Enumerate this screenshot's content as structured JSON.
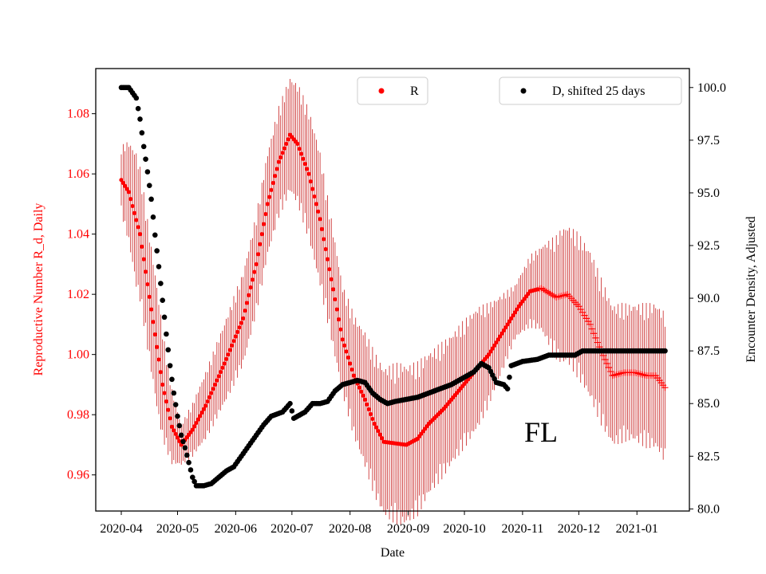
{
  "chart_data": {
    "type": "scatter",
    "title": "",
    "xlabel": "Date",
    "ylabel_left": "Reproductive Number R_d, Daily",
    "ylabel_right": "Encounter Density, Adjusted",
    "annotation": "FL",
    "x_ticks": [
      "2020-04",
      "2020-05",
      "2020-06",
      "2020-07",
      "2020-08",
      "2020-09",
      "2020-10",
      "2020-11",
      "2020-12",
      "2021-01"
    ],
    "ylim_left": [
      0.948,
      1.095
    ],
    "yticks_left": [
      "0.96",
      "0.98",
      "1.00",
      "1.02",
      "1.04",
      "1.06",
      "1.08"
    ],
    "ylim_right": [
      79.9,
      100.9
    ],
    "yticks_right": [
      "80.0",
      "82.5",
      "85.0",
      "87.5",
      "90.0",
      "92.5",
      "95.0",
      "97.5",
      "100.0"
    ],
    "legend": [
      {
        "name": "R",
        "color": "#ff0000",
        "marker": "dot",
        "placement": "top-center"
      },
      {
        "name": "D, shifted 25 days",
        "color": "#000000",
        "marker": "dot",
        "placement": "top-right"
      }
    ],
    "series": [
      {
        "name": "R",
        "axis": "left",
        "color": "#ff0000",
        "error_color": "#c00000",
        "note": "days since 2020-04-01; dot markers to day 223, plus markers afterwards",
        "marker_switch_day": 223,
        "knots": [
          [
            0,
            1.058
          ],
          [
            4,
            1.054
          ],
          [
            10,
            1.04
          ],
          [
            16,
            1.015
          ],
          [
            22,
            0.99
          ],
          [
            27,
            0.976
          ],
          [
            32,
            0.97
          ],
          [
            38,
            0.975
          ],
          [
            45,
            0.983
          ],
          [
            55,
            0.997
          ],
          [
            65,
            1.012
          ],
          [
            72,
            1.03
          ],
          [
            78,
            1.05
          ],
          [
            84,
            1.064
          ],
          [
            90,
            1.073
          ],
          [
            94,
            1.07
          ],
          [
            100,
            1.06
          ],
          [
            106,
            1.045
          ],
          [
            112,
            1.025
          ],
          [
            118,
            1.005
          ],
          [
            124,
            0.993
          ],
          [
            130,
            0.985
          ],
          [
            135,
            0.977
          ],
          [
            140,
            0.971
          ],
          [
            152,
            0.97
          ],
          [
            158,
            0.972
          ],
          [
            164,
            0.977
          ],
          [
            172,
            0.982
          ],
          [
            180,
            0.988
          ],
          [
            188,
            0.994
          ],
          [
            196,
            1.0
          ],
          [
            204,
            1.008
          ],
          [
            212,
            1.016
          ],
          [
            218,
            1.021
          ],
          [
            224,
            1.022
          ],
          [
            232,
            1.019
          ],
          [
            238,
            1.02
          ],
          [
            244,
            1.016
          ],
          [
            250,
            1.01
          ],
          [
            256,
            1.001
          ],
          [
            262,
            0.993
          ],
          [
            268,
            0.994
          ],
          [
            274,
            0.994
          ],
          [
            280,
            0.993
          ],
          [
            285,
            0.993
          ],
          [
            290,
            0.989
          ]
        ],
        "error_knots": [
          [
            0,
            0.01
          ],
          [
            8,
            0.02
          ],
          [
            20,
            0.018
          ],
          [
            32,
            0.006
          ],
          [
            45,
            0.01
          ],
          [
            60,
            0.013
          ],
          [
            90,
            0.017
          ],
          [
            105,
            0.02
          ],
          [
            118,
            0.016
          ],
          [
            130,
            0.02
          ],
          [
            150,
            0.024
          ],
          [
            170,
            0.02
          ],
          [
            190,
            0.018
          ],
          [
            210,
            0.008
          ],
          [
            223,
            0.012
          ],
          [
            235,
            0.02
          ],
          [
            250,
            0.022
          ],
          [
            270,
            0.02
          ],
          [
            290,
            0.022
          ]
        ]
      },
      {
        "name": "D, shifted 25 days",
        "axis": "right",
        "color": "#000000",
        "note": "days since 2020-04-01",
        "knots": [
          [
            0,
            100.0
          ],
          [
            4,
            100.0
          ],
          [
            8,
            99.5
          ],
          [
            10,
            98.5
          ],
          [
            12,
            97.2
          ],
          [
            14,
            96.0
          ],
          [
            16,
            94.7
          ],
          [
            18,
            93.0
          ],
          [
            20,
            91.5
          ],
          [
            22,
            89.9
          ],
          [
            24,
            88.3
          ],
          [
            26,
            86.8
          ],
          [
            28,
            85.5
          ],
          [
            30,
            84.4
          ],
          [
            32,
            83.5
          ],
          [
            34,
            82.9
          ],
          [
            36,
            82.2
          ],
          [
            38,
            81.5
          ],
          [
            40,
            81.1
          ],
          [
            44,
            81.1
          ],
          [
            48,
            81.2
          ],
          [
            52,
            81.5
          ],
          [
            56,
            81.8
          ],
          [
            60,
            82.0
          ],
          [
            64,
            82.5
          ],
          [
            68,
            83.0
          ],
          [
            72,
            83.5
          ],
          [
            76,
            84.0
          ],
          [
            80,
            84.4
          ],
          [
            86,
            84.6
          ],
          [
            90,
            85.0
          ],
          [
            92,
            84.3
          ],
          [
            94,
            84.4
          ],
          [
            98,
            84.6
          ],
          [
            102,
            85.0
          ],
          [
            106,
            85.0
          ],
          [
            110,
            85.1
          ],
          [
            114,
            85.6
          ],
          [
            118,
            85.9
          ],
          [
            122,
            86.0
          ],
          [
            126,
            86.1
          ],
          [
            130,
            86.0
          ],
          [
            134,
            85.5
          ],
          [
            138,
            85.2
          ],
          [
            142,
            85.0
          ],
          [
            146,
            85.1
          ],
          [
            152,
            85.2
          ],
          [
            158,
            85.3
          ],
          [
            164,
            85.5
          ],
          [
            170,
            85.7
          ],
          [
            176,
            85.9
          ],
          [
            182,
            86.2
          ],
          [
            188,
            86.5
          ],
          [
            192,
            86.9
          ],
          [
            196,
            86.7
          ],
          [
            200,
            86.0
          ],
          [
            204,
            85.9
          ],
          [
            206,
            85.7
          ],
          [
            208,
            86.8
          ],
          [
            214,
            87.0
          ],
          [
            222,
            87.1
          ],
          [
            228,
            87.3
          ],
          [
            236,
            87.3
          ],
          [
            242,
            87.3
          ],
          [
            246,
            87.5
          ],
          [
            250,
            87.5
          ],
          [
            258,
            87.5
          ],
          [
            270,
            87.5
          ],
          [
            280,
            87.5
          ],
          [
            290,
            87.5
          ]
        ]
      }
    ]
  }
}
